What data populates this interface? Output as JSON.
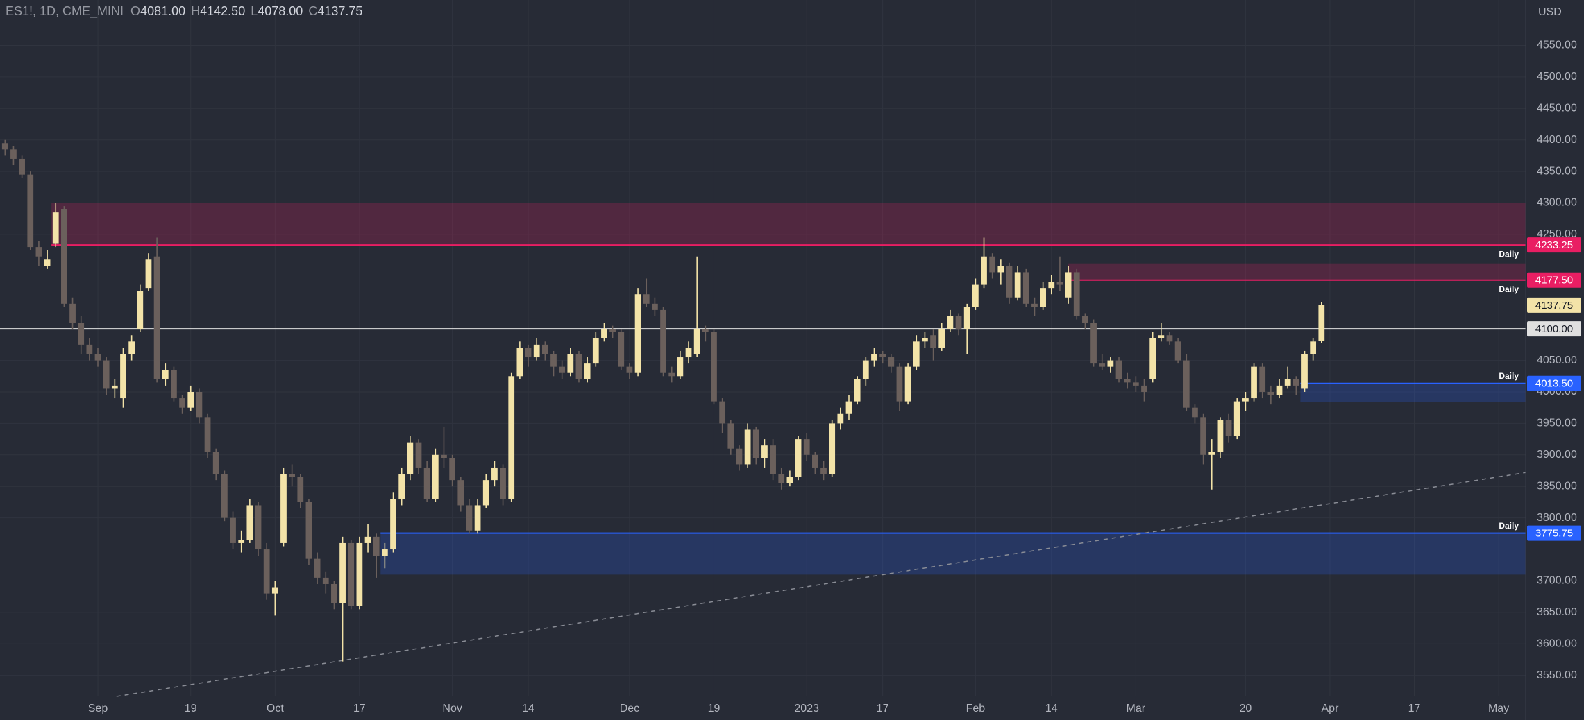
{
  "header": {
    "symbol": "ES1!, 1D, CME_MINI",
    "fields": [
      {
        "key": "O",
        "value": "4081.00"
      },
      {
        "key": "H",
        "value": "4142.50"
      },
      {
        "key": "L",
        "value": "4078.00"
      },
      {
        "key": "C",
        "value": "4137.75"
      }
    ]
  },
  "chart_data": {
    "type": "candlestick",
    "currency": "USD",
    "up_color": "#f3e3a8",
    "down_color": "#6b605c",
    "candles": [
      [
        4395,
        4400,
        4375,
        4385
      ],
      [
        4385,
        4390,
        4360,
        4370
      ],
      [
        4370,
        4375,
        4340,
        4345
      ],
      [
        4345,
        4350,
        4225,
        4230
      ],
      [
        4230,
        4240,
        4200,
        4215
      ],
      [
        4200,
        4225,
        4195,
        4210
      ],
      [
        4235,
        4300,
        4230,
        4285
      ],
      [
        4290,
        4295,
        4135,
        4140
      ],
      [
        4140,
        4150,
        4100,
        4110
      ],
      [
        4110,
        4120,
        4060,
        4075
      ],
      [
        4075,
        4085,
        4050,
        4060
      ],
      [
        4060,
        4070,
        4040,
        4050
      ],
      [
        4050,
        4055,
        3995,
        4005
      ],
      [
        4005,
        4020,
        3990,
        4010
      ],
      [
        3990,
        4070,
        3975,
        4060
      ],
      [
        4060,
        4090,
        4050,
        4080
      ],
      [
        4100,
        4170,
        4095,
        4160
      ],
      [
        4165,
        4220,
        4160,
        4210
      ],
      [
        4215,
        4245,
        4015,
        4020
      ],
      [
        4020,
        4045,
        4010,
        4035
      ],
      [
        4035,
        4040,
        3985,
        3990
      ],
      [
        3990,
        3995,
        3965,
        3975
      ],
      [
        3975,
        4010,
        3970,
        4000
      ],
      [
        4000,
        4005,
        3950,
        3960
      ],
      [
        3960,
        3965,
        3895,
        3905
      ],
      [
        3905,
        3910,
        3860,
        3870
      ],
      [
        3870,
        3875,
        3795,
        3800
      ],
      [
        3800,
        3810,
        3750,
        3760
      ],
      [
        3760,
        3780,
        3745,
        3765
      ],
      [
        3765,
        3830,
        3760,
        3820
      ],
      [
        3820,
        3825,
        3740,
        3750
      ],
      [
        3750,
        3760,
        3670,
        3680
      ],
      [
        3680,
        3700,
        3645,
        3690
      ],
      [
        3760,
        3880,
        3755,
        3870
      ],
      [
        3870,
        3885,
        3850,
        3865
      ],
      [
        3865,
        3870,
        3815,
        3825
      ],
      [
        3825,
        3830,
        3725,
        3735
      ],
      [
        3735,
        3745,
        3695,
        3705
      ],
      [
        3705,
        3715,
        3680,
        3695
      ],
      [
        3695,
        3700,
        3655,
        3665
      ],
      [
        3665,
        3770,
        3572,
        3760
      ],
      [
        3760,
        3765,
        3655,
        3660
      ],
      [
        3660,
        3770,
        3655,
        3760
      ],
      [
        3760,
        3790,
        3745,
        3770
      ],
      [
        3770,
        3775,
        3705,
        3740
      ],
      [
        3740,
        3760,
        3720,
        3750
      ],
      [
        3750,
        3840,
        3745,
        3830
      ],
      [
        3830,
        3880,
        3820,
        3870
      ],
      [
        3870,
        3930,
        3860,
        3920
      ],
      [
        3920,
        3925,
        3870,
        3880
      ],
      [
        3880,
        3890,
        3825,
        3830
      ],
      [
        3830,
        3910,
        3825,
        3900
      ],
      [
        3900,
        3945,
        3880,
        3895
      ],
      [
        3895,
        3900,
        3850,
        3860
      ],
      [
        3860,
        3865,
        3810,
        3820
      ],
      [
        3820,
        3830,
        3775,
        3780
      ],
      [
        3780,
        3830,
        3775,
        3820
      ],
      [
        3820,
        3870,
        3815,
        3860
      ],
      [
        3860,
        3890,
        3850,
        3880
      ],
      [
        3880,
        3885,
        3820,
        3830
      ],
      [
        3830,
        4030,
        3825,
        4025
      ],
      [
        4025,
        4080,
        4020,
        4070
      ],
      [
        4070,
        4075,
        4040,
        4055
      ],
      [
        4055,
        4085,
        4050,
        4075
      ],
      [
        4075,
        4080,
        4050,
        4060
      ],
      [
        4060,
        4065,
        4025,
        4040
      ],
      [
        4040,
        4050,
        4020,
        4030
      ],
      [
        4030,
        4070,
        4025,
        4060
      ],
      [
        4060,
        4065,
        4015,
        4020
      ],
      [
        4020,
        4055,
        4015,
        4045
      ],
      [
        4045,
        4095,
        4040,
        4085
      ],
      [
        4085,
        4110,
        4080,
        4100
      ],
      [
        4100,
        4105,
        4085,
        4095
      ],
      [
        4095,
        4100,
        4035,
        4040
      ],
      [
        4040,
        4045,
        4020,
        4030
      ],
      [
        4030,
        4165,
        4025,
        4155
      ],
      [
        4155,
        4180,
        4135,
        4140
      ],
      [
        4140,
        4150,
        4120,
        4130
      ],
      [
        4130,
        4135,
        4025,
        4030
      ],
      [
        4030,
        4040,
        4015,
        4025
      ],
      [
        4025,
        4065,
        4020,
        4055
      ],
      [
        4055,
        4080,
        4045,
        4070
      ],
      [
        4060,
        4215,
        4055,
        4100
      ],
      [
        4100,
        4105,
        4080,
        4095
      ],
      [
        4095,
        4100,
        3980,
        3985
      ],
      [
        3985,
        3990,
        3935,
        3950
      ],
      [
        3950,
        3955,
        3900,
        3910
      ],
      [
        3910,
        3915,
        3875,
        3885
      ],
      [
        3885,
        3950,
        3880,
        3940
      ],
      [
        3940,
        3945,
        3885,
        3895
      ],
      [
        3895,
        3925,
        3880,
        3915
      ],
      [
        3915,
        3925,
        3860,
        3870
      ],
      [
        3870,
        3880,
        3845,
        3855
      ],
      [
        3855,
        3875,
        3850,
        3865
      ],
      [
        3865,
        3930,
        3860,
        3925
      ],
      [
        3925,
        3935,
        3890,
        3900
      ],
      [
        3900,
        3905,
        3870,
        3880
      ],
      [
        3880,
        3890,
        3860,
        3870
      ],
      [
        3870,
        3955,
        3865,
        3950
      ],
      [
        3950,
        3975,
        3940,
        3965
      ],
      [
        3965,
        3995,
        3955,
        3985
      ],
      [
        3985,
        4025,
        3980,
        4020
      ],
      [
        4020,
        4055,
        4010,
        4050
      ],
      [
        4050,
        4070,
        4040,
        4060
      ],
      [
        4060,
        4065,
        4045,
        4055
      ],
      [
        4055,
        4060,
        4030,
        4040
      ],
      [
        4040,
        4045,
        3970,
        3985
      ],
      [
        3985,
        4045,
        3980,
        4040
      ],
      [
        4040,
        4090,
        4035,
        4080
      ],
      [
        4080,
        4095,
        4070,
        4085
      ],
      [
        4090,
        4100,
        4050,
        4070
      ],
      [
        4070,
        4110,
        4065,
        4100
      ],
      [
        4100,
        4130,
        4095,
        4120
      ],
      [
        4120,
        4125,
        4090,
        4100
      ],
      [
        4100,
        4140,
        4060,
        4135
      ],
      [
        4135,
        4180,
        4130,
        4170
      ],
      [
        4170,
        4245,
        4165,
        4215
      ],
      [
        4215,
        4220,
        4180,
        4190
      ],
      [
        4190,
        4210,
        4170,
        4200
      ],
      [
        4200,
        4205,
        4140,
        4150
      ],
      [
        4150,
        4200,
        4145,
        4190
      ],
      [
        4190,
        4195,
        4135,
        4140
      ],
      [
        4140,
        4150,
        4120,
        4135
      ],
      [
        4135,
        4175,
        4130,
        4165
      ],
      [
        4165,
        4185,
        4155,
        4175
      ],
      [
        4175,
        4215,
        4160,
        4170
      ],
      [
        4150,
        4200,
        4140,
        4190
      ],
      [
        4190,
        4195,
        4115,
        4120
      ],
      [
        4120,
        4125,
        4100,
        4110
      ],
      [
        4110,
        4115,
        4040,
        4045
      ],
      [
        4045,
        4060,
        4035,
        4040
      ],
      [
        4040,
        4055,
        4030,
        4050
      ],
      [
        4050,
        4055,
        4015,
        4020
      ],
      [
        4020,
        4030,
        4005,
        4015
      ],
      [
        4015,
        4025,
        4000,
        4010
      ],
      [
        4010,
        4020,
        3985,
        4000
      ],
      [
        4020,
        4095,
        4015,
        4085
      ],
      [
        4085,
        4110,
        4080,
        4090
      ],
      [
        4090,
        4095,
        4075,
        4080
      ],
      [
        4080,
        4085,
        4045,
        4050
      ],
      [
        4050,
        4060,
        3970,
        3975
      ],
      [
        3975,
        3980,
        3950,
        3960
      ],
      [
        3960,
        3965,
        3885,
        3900
      ],
      [
        3900,
        3925,
        3845,
        3905
      ],
      [
        3905,
        3960,
        3895,
        3955
      ],
      [
        3955,
        3965,
        3920,
        3930
      ],
      [
        3930,
        3990,
        3925,
        3985
      ],
      [
        3985,
        4000,
        3970,
        3990
      ],
      [
        3990,
        4045,
        3985,
        4040
      ],
      [
        4040,
        4045,
        3990,
        4000
      ],
      [
        4000,
        4010,
        3980,
        3995
      ],
      [
        3995,
        4020,
        3990,
        4010
      ],
      [
        4010,
        4040,
        4005,
        4020
      ],
      [
        4020,
        4025,
        3995,
        4010
      ],
      [
        4005,
        4065,
        4000,
        4060
      ],
      [
        4060,
        4085,
        4050,
        4080
      ],
      [
        4081,
        4142.5,
        4078,
        4137.75
      ]
    ],
    "ylim": [
      3516.6,
      4622.1
    ],
    "yticks": [
      {
        "value": 4550,
        "label": "4550.00"
      },
      {
        "value": 4500,
        "label": "4500.00"
      },
      {
        "value": 4450,
        "label": "4450.00"
      },
      {
        "value": 4400,
        "label": "4400.00"
      },
      {
        "value": 4350,
        "label": "4350.00"
      },
      {
        "value": 4300,
        "label": "4300.00"
      },
      {
        "value": 4250,
        "label": "4250.00"
      },
      {
        "value": 4050,
        "label": "4050.00"
      },
      {
        "value": 4000,
        "label": "4000.00"
      },
      {
        "value": 3950,
        "label": "3950.00"
      },
      {
        "value": 3900,
        "label": "3900.00"
      },
      {
        "value": 3850,
        "label": "3850.00"
      },
      {
        "value": 3800,
        "label": "3800.00"
      },
      {
        "value": 3700,
        "label": "3700.00"
      },
      {
        "value": 3650,
        "label": "3650.00"
      },
      {
        "value": 3600,
        "label": "3600.00"
      },
      {
        "value": 3550,
        "label": "3550.00"
      }
    ],
    "xlim": [
      -0.6,
      180.2
    ],
    "xticks": [
      {
        "value": 11,
        "label": "Sep"
      },
      {
        "value": 22,
        "label": "19"
      },
      {
        "value": 32,
        "label": "Oct"
      },
      {
        "value": 42,
        "label": "17"
      },
      {
        "value": 53,
        "label": "Nov"
      },
      {
        "value": 62,
        "label": "14"
      },
      {
        "value": 74,
        "label": "Dec"
      },
      {
        "value": 84,
        "label": "19"
      },
      {
        "value": 95,
        "label": "2023"
      },
      {
        "value": 104,
        "label": "17"
      },
      {
        "value": 115,
        "label": "Feb"
      },
      {
        "value": 124,
        "label": "14"
      },
      {
        "value": 134,
        "label": "Mar"
      },
      {
        "value": 147,
        "label": "20"
      },
      {
        "value": 157,
        "label": "Apr"
      },
      {
        "value": 167,
        "label": "17"
      },
      {
        "value": 177,
        "label": "May"
      }
    ],
    "grid": true,
    "hlines": [
      {
        "value": 4100,
        "label": "4100.00",
        "color": "#e0e0e0"
      }
    ],
    "last_price": {
      "value": 4137.75,
      "label": "4137.75",
      "color": "#f3e3a8"
    },
    "zones": [
      {
        "level": {
          "value": 4233.25,
          "label": "4233.25"
        },
        "edge": 4300,
        "start": 5.5,
        "color": "#e91e63",
        "tag": "Daily"
      },
      {
        "level": {
          "value": 4177.5,
          "label": "4177.50"
        },
        "edge": 4204,
        "start": 126,
        "color": "#e91e63",
        "tag": "Daily"
      },
      {
        "level": {
          "value": 4013.5,
          "label": "4013.50"
        },
        "edge": 3984,
        "start": 153.5,
        "color": "#2962ff",
        "tag": "Daily"
      },
      {
        "level": {
          "value": 3775.75,
          "label": "3775.75"
        },
        "edge": 3710,
        "start": 44.5,
        "color": "#2962ff",
        "tag": "Daily"
      }
    ],
    "trendline": {
      "x": [
        13.2,
        180.2
      ],
      "y": [
        3516.6,
        3872
      ]
    }
  }
}
